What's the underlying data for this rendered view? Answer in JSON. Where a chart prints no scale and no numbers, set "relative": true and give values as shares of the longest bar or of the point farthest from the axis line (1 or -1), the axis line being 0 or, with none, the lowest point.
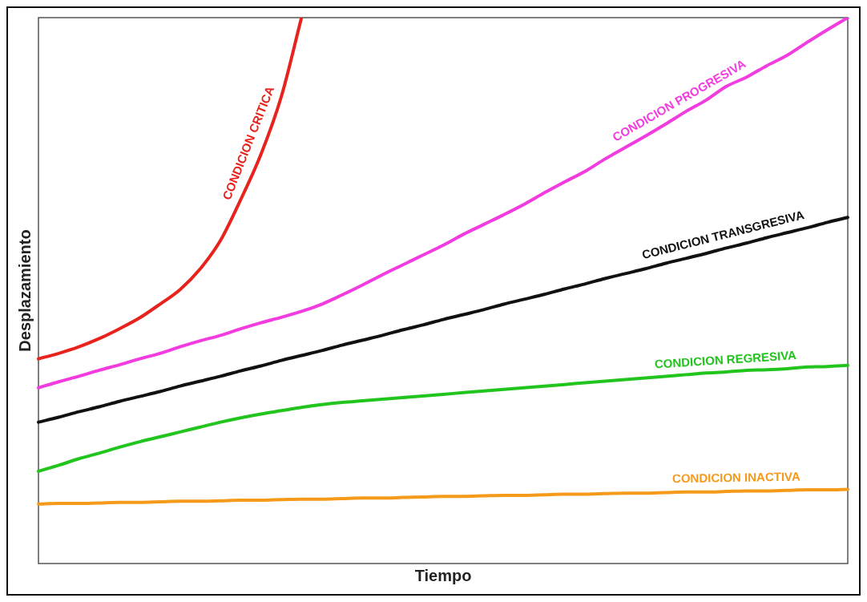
{
  "chart_data": {
    "type": "line",
    "relative": true,
    "xlabel": "Tiempo",
    "ylabel": "Desplazamiento",
    "grid": false,
    "legend": false,
    "marker": "none",
    "line_style": "solid",
    "categories": [
      null,
      null,
      null,
      null,
      null,
      null,
      null,
      null,
      null,
      null,
      null,
      null,
      null,
      null,
      null,
      null,
      null,
      null,
      null,
      null,
      null,
      null,
      null,
      null,
      null,
      null,
      null,
      null,
      null,
      null,
      null,
      null,
      null,
      null,
      null,
      null,
      null,
      null,
      null,
      null,
      null
    ],
    "series": [
      {
        "name": "CONDICION CRITICA",
        "color": "#e8221c",
        "values": [
          0.375,
          0.385,
          0.397,
          0.412,
          0.43,
          0.45,
          0.475,
          0.502,
          0.54,
          0.592,
          0.667,
          0.75,
          0.855,
          1,
          null,
          null,
          null,
          null,
          null,
          null,
          null,
          null,
          null,
          null,
          null,
          null,
          null,
          null,
          null,
          null,
          null,
          null,
          null,
          null,
          null,
          null,
          null,
          null,
          null,
          null,
          null
        ]
      },
      {
        "name": "CONDICION PROGRESIVA",
        "color": "#f23ce0",
        "values": [
          0.322,
          0.333,
          0.343,
          0.354,
          0.364,
          0.375,
          0.385,
          0.397,
          0.408,
          0.418,
          0.43,
          0.441,
          0.451,
          0.462,
          0.475,
          0.492,
          0.51,
          0.529,
          0.547,
          0.565,
          0.583,
          0.603,
          0.621,
          0.639,
          0.658,
          0.679,
          0.699,
          0.718,
          0.741,
          0.762,
          0.783,
          0.805,
          0.828,
          0.849,
          0.874,
          0.891,
          0.912,
          0.931,
          0.955,
          0.978,
          1
        ]
      },
      {
        "name": "CONDICION TRANSGRESIVA",
        "color": "#111111",
        "values": [
          0.259,
          0.268,
          0.278,
          0.287,
          0.297,
          0.306,
          0.315,
          0.325,
          0.334,
          0.343,
          0.353,
          0.362,
          0.372,
          0.381,
          0.39,
          0.4,
          0.409,
          0.418,
          0.428,
          0.437,
          0.447,
          0.456,
          0.465,
          0.475,
          0.484,
          0.493,
          0.503,
          0.512,
          0.522,
          0.531,
          0.54,
          0.55,
          0.559,
          0.568,
          0.578,
          0.587,
          0.597,
          0.606,
          0.615,
          0.625,
          0.634
        ]
      },
      {
        "name": "CONDICION REGRESIVA",
        "color": "#22c41e",
        "values": [
          0.169,
          0.18,
          0.192,
          0.202,
          0.213,
          0.223,
          0.232,
          0.241,
          0.25,
          0.259,
          0.267,
          0.274,
          0.28,
          0.286,
          0.291,
          0.295,
          0.298,
          0.301,
          0.304,
          0.307,
          0.31,
          0.313,
          0.316,
          0.319,
          0.322,
          0.325,
          0.328,
          0.331,
          0.334,
          0.337,
          0.34,
          0.343,
          0.346,
          0.349,
          0.351,
          0.354,
          0.355,
          0.357,
          0.36,
          0.361,
          0.363
        ]
      },
      {
        "name": "CONDICION INACTIVA",
        "color": "#f59a1a",
        "values": [
          0.109,
          0.11,
          0.11,
          0.111,
          0.112,
          0.112,
          0.113,
          0.114,
          0.114,
          0.115,
          0.116,
          0.116,
          0.117,
          0.118,
          0.118,
          0.119,
          0.12,
          0.12,
          0.121,
          0.122,
          0.123,
          0.123,
          0.124,
          0.125,
          0.125,
          0.126,
          0.127,
          0.127,
          0.128,
          0.129,
          0.129,
          0.13,
          0.131,
          0.131,
          0.132,
          0.133,
          0.133,
          0.134,
          0.135,
          0.135,
          0.136
        ]
      }
    ]
  }
}
